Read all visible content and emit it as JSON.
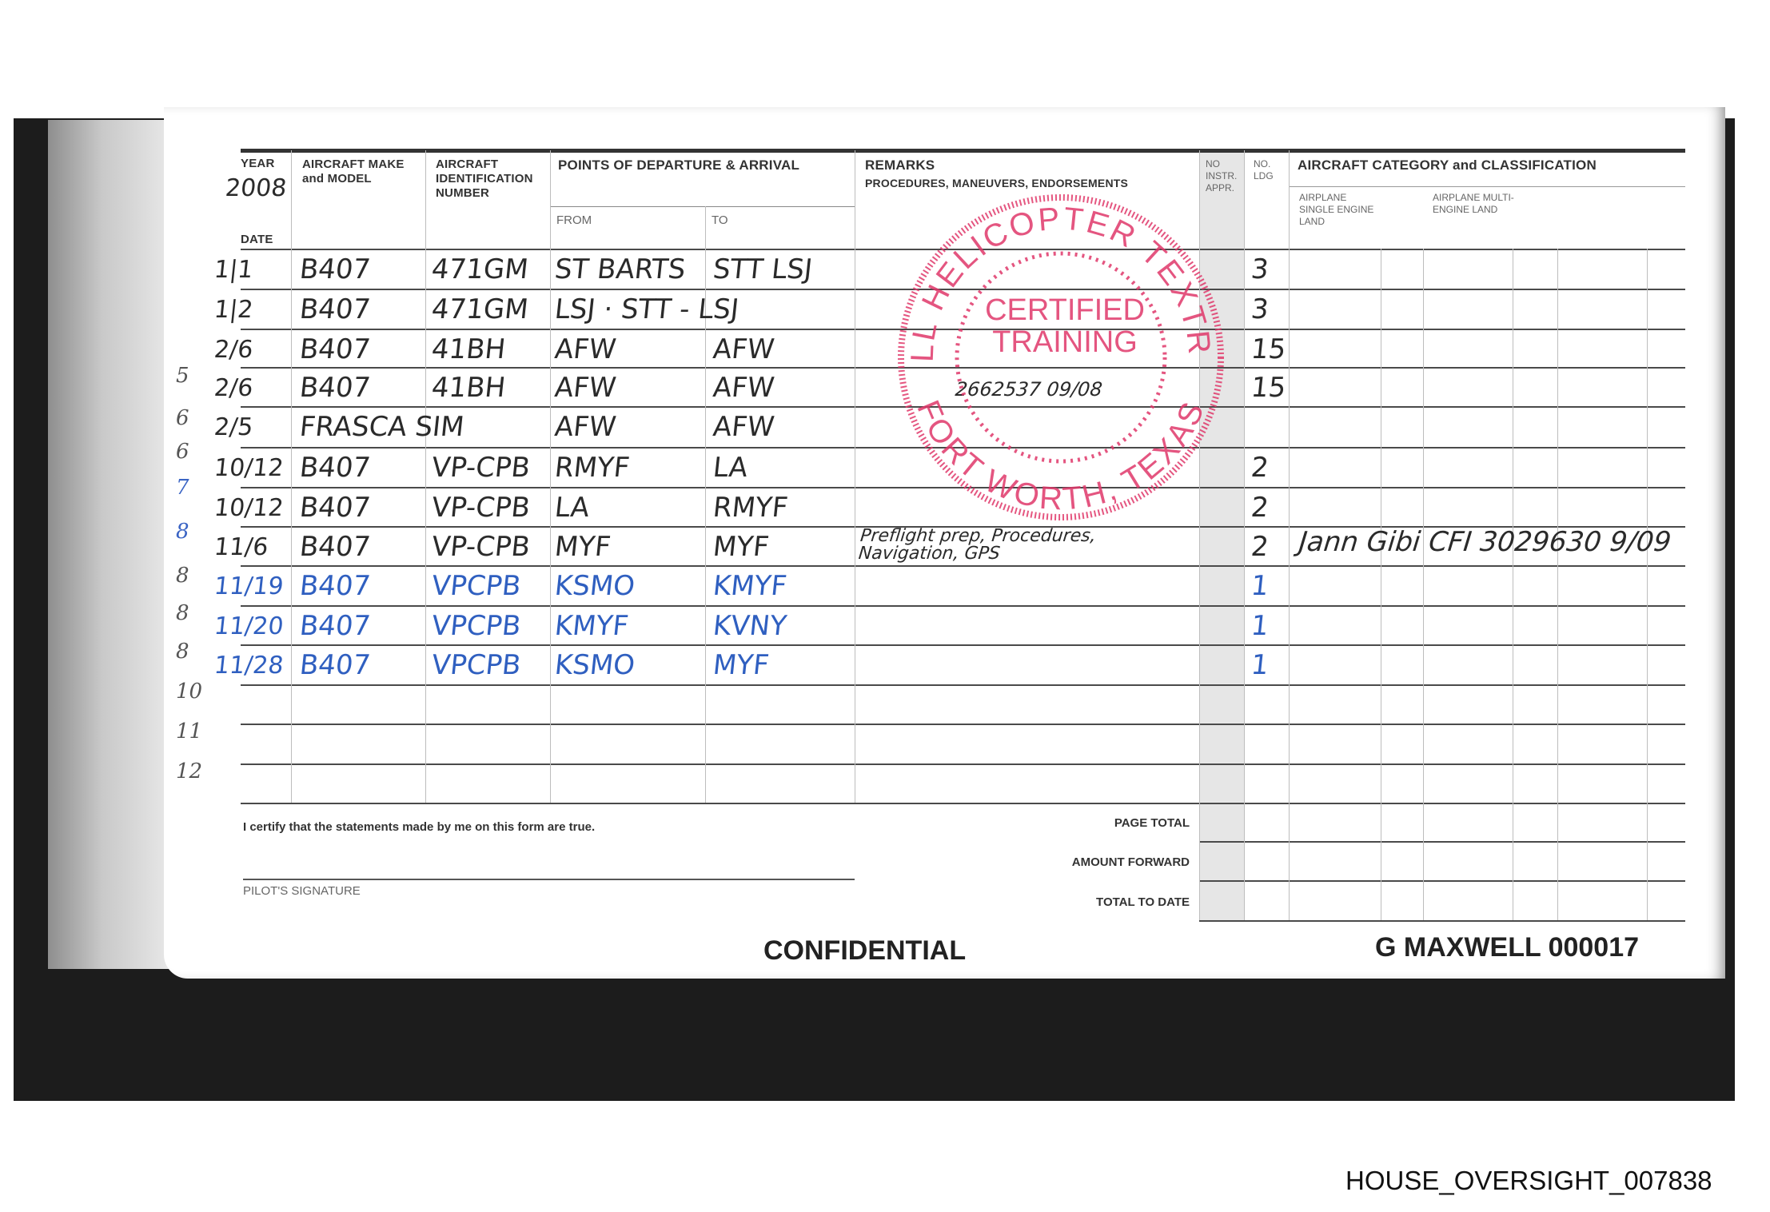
{
  "header": {
    "year_label": "YEAR",
    "year_value": "2008",
    "date_label": "DATE",
    "make_label": "AIRCRAFT MAKE and MODEL",
    "ident_label": "AIRCRAFT IDENTIFICATION NUMBER",
    "points_label": "POINTS OF DEPARTURE & ARRIVAL",
    "from_label": "FROM",
    "to_label": "TO",
    "remarks_label": "REMARKS",
    "remarks_sub": "PROCEDURES, MANEUVERS, ENDORSEMENTS",
    "instr_label": "NO INSTR. APPR.",
    "ldg_label": "NO. LDG",
    "category_label": "AIRCRAFT CATEGORY and CLASSIFICATION",
    "single_engine_label": "AIRPLANE SINGLE ENGINE LAND",
    "multi_engine_label": "AIRPLANE MULTI-ENGINE LAND"
  },
  "rows": [
    {
      "date": "1|1",
      "make": "B407",
      "ident": "471GM",
      "from": "ST BARTS",
      "to": "STT LSJ",
      "remarks": "",
      "ldg": "3",
      "ink": "black"
    },
    {
      "date": "1|2",
      "make": "B407",
      "ident": "471GM",
      "from": "LSJ · STT - LSJ",
      "to": "",
      "remarks": "",
      "ldg": "3",
      "ink": "black"
    },
    {
      "date": "2/6",
      "make": "B407",
      "ident": "41BH",
      "from": "AFW",
      "to": "AFW",
      "remarks": "",
      "ldg": "15",
      "ink": "black"
    },
    {
      "date": "2/6",
      "make": "B407",
      "ident": "41BH",
      "from": "AFW",
      "to": "AFW",
      "remarks": "2662537 09/08",
      "ldg": "15",
      "ink": "black"
    },
    {
      "date": "2/5",
      "make": "FRASCA SIM",
      "ident": "",
      "from": "AFW",
      "to": "AFW",
      "remarks": "",
      "ldg": "",
      "ink": "black"
    },
    {
      "date": "10/12",
      "make": "B407",
      "ident": "VP-CPB",
      "from": "RMYF",
      "to": "LA",
      "remarks": "",
      "ldg": "2",
      "ink": "black"
    },
    {
      "date": "10/12",
      "make": "B407",
      "ident": "VP-CPB",
      "from": "LA",
      "to": "RMYF",
      "remarks": "",
      "ldg": "2",
      "ink": "black"
    },
    {
      "date": "11/6",
      "make": "B407",
      "ident": "VP-CPB",
      "from": "MYF",
      "to": "MYF",
      "remarks": "Preflight prep, Procedures, Navigation, GPS",
      "ldg": "2",
      "ink": "black"
    },
    {
      "date": "11/19",
      "make": "B407",
      "ident": "VPCPB",
      "from": "KSMO",
      "to": "KMYF",
      "remarks": "",
      "ldg": "1",
      "ink": "blue"
    },
    {
      "date": "11/20",
      "make": "B407",
      "ident": "VPCPB",
      "from": "KMYF",
      "to": "KVNY",
      "remarks": "",
      "ldg": "1",
      "ink": "blue"
    },
    {
      "date": "11/28",
      "make": "B407",
      "ident": "VPCPB",
      "from": "KSMO",
      "to": "MYF",
      "remarks": "",
      "ldg": "1",
      "ink": "blue"
    }
  ],
  "endorsement": "Jann Gibi CFI 3029630 9/09",
  "margin_numbers": [
    "5",
    "6",
    "6",
    "7",
    "8",
    "8",
    "8",
    "8",
    "10",
    "11",
    "12"
  ],
  "stamp": {
    "top_text": "BELL HELICOPTER TEXTRON",
    "bottom_text": "FORT WORTH, TEXAS",
    "line1": "CERTIFIED",
    "line2": "TRAINING",
    "color": "#e0386a"
  },
  "footer": {
    "certify": "I certify that the statements made by me on this form are true.",
    "signature_label": "PILOT'S SIGNATURE",
    "page_total": "PAGE TOTAL",
    "amount_forward": "AMOUNT FORWARD",
    "total_to_date": "TOTAL TO DATE"
  },
  "confidential": "CONFIDENTIAL",
  "bates_number": "G MAXWELL 000017",
  "house_oversight": "HOUSE_OVERSIGHT_007838",
  "colors": {
    "blue_ink": "#2f5fc0",
    "stamp": "#e0386a"
  }
}
